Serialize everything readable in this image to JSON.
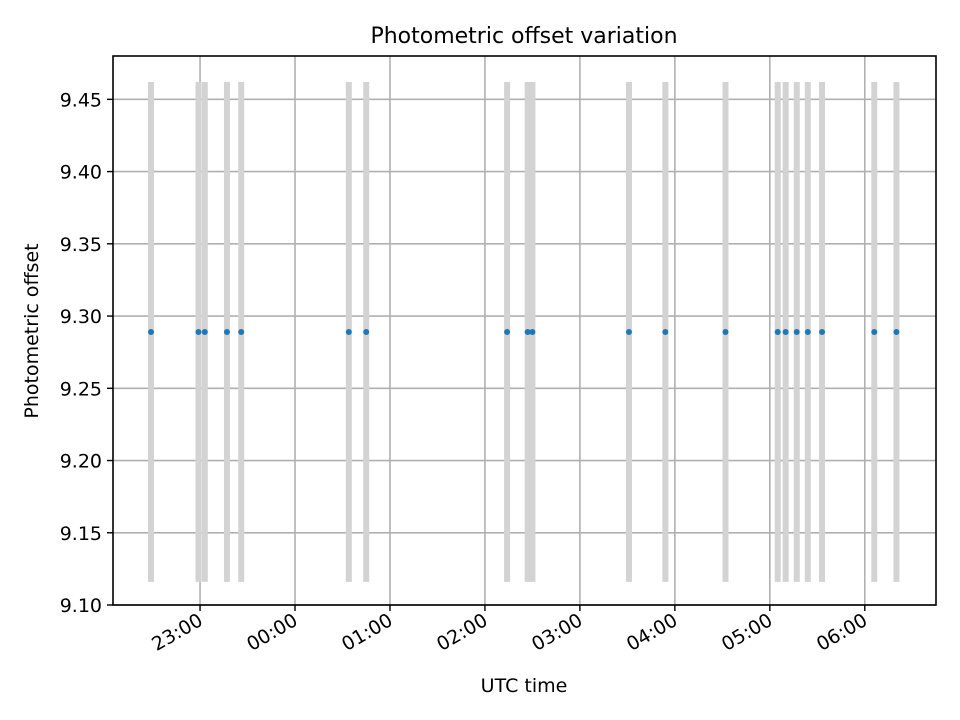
{
  "chart_data": {
    "type": "scatter",
    "title": "Photometric offset variation",
    "xlabel": "UTC time",
    "ylabel": "Photometric offset",
    "xlim": [
      "22:05",
      "06:45"
    ],
    "ylim": [
      9.1,
      9.48
    ],
    "grid": true,
    "x_ticks": [
      "23:00",
      "00:00",
      "01:00",
      "02:00",
      "03:00",
      "04:00",
      "05:00",
      "06:00"
    ],
    "y_ticks": [
      "9.10",
      "9.15",
      "9.20",
      "9.25",
      "9.30",
      "9.35",
      "9.40",
      "9.45"
    ],
    "error_bar_color": "#d3d3d3",
    "marker_color": "#1f77b4",
    "series": [
      {
        "x": [
          "22:29",
          "22:59",
          "23:03",
          "23:17",
          "23:26",
          "00:34",
          "00:45",
          "02:14",
          "02:27",
          "02:30",
          "03:31",
          "03:54",
          "04:32",
          "05:05",
          "05:10",
          "05:17",
          "05:24",
          "05:33",
          "06:06",
          "06:20"
        ],
        "y": [
          9.289,
          9.289,
          9.289,
          9.289,
          9.289,
          9.289,
          9.289,
          9.289,
          9.289,
          9.289,
          9.289,
          9.289,
          9.289,
          9.289,
          9.289,
          9.289,
          9.289,
          9.289,
          9.289,
          9.289
        ],
        "yerr": 0.173
      }
    ]
  }
}
